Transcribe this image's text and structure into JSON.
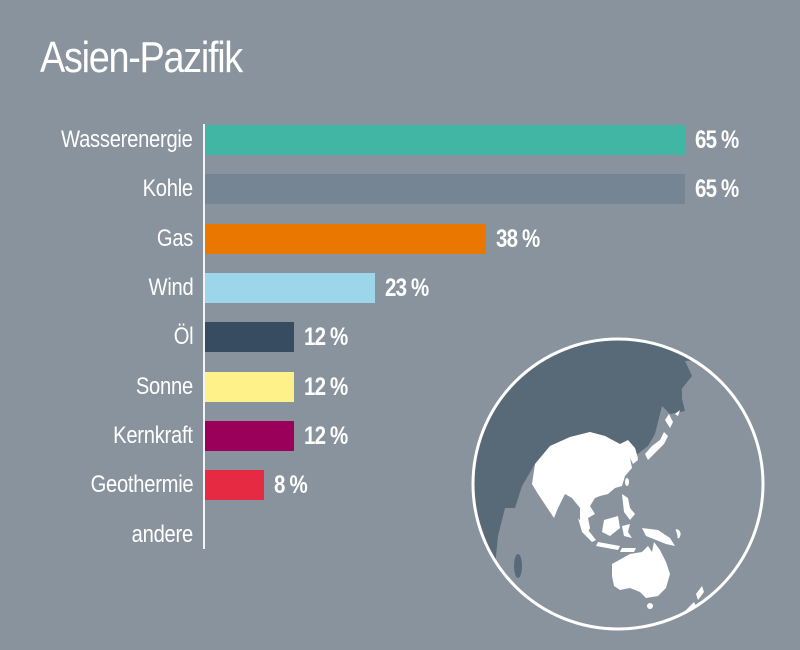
{
  "title": "Asien-Pazifik",
  "rows": [
    {
      "label": "Wasserenergie",
      "value": 65,
      "value_label": "65 %",
      "color": "#42b6a5"
    },
    {
      "label": "Kohle",
      "value": 65,
      "value_label": "65 %",
      "color": "#768594"
    },
    {
      "label": "Gas",
      "value": 38,
      "value_label": "38 %",
      "color": "#ea7700"
    },
    {
      "label": "Wind",
      "value": 23,
      "value_label": "23 %",
      "color": "#9dd5ea"
    },
    {
      "label": "Öl",
      "value": 12,
      "value_label": "12 %",
      "color": "#374c60"
    },
    {
      "label": "Sonne",
      "value": 12,
      "value_label": "12 %",
      "color": "#fff18a"
    },
    {
      "label": "Kernkraft",
      "value": 12,
      "value_label": "12 %",
      "color": "#9a005a"
    },
    {
      "label": "Geothermie",
      "value": 8,
      "value_label": "8 %",
      "color": "#e52a42"
    },
    {
      "label": "andere",
      "value": null,
      "value_label": "",
      "color": null
    }
  ],
  "colors": {
    "background": "#89939e",
    "text": "#ffffff",
    "globe_land_dark": "#586a77",
    "globe_land_highlight": "#ffffff",
    "globe_outline": "#ffffff"
  },
  "globe": {
    "icon": "globe-asia-pacific-icon"
  },
  "chart_data": {
    "type": "bar",
    "orientation": "horizontal",
    "title": "Asien-Pazifik",
    "categories": [
      "Wasserenergie",
      "Kohle",
      "Gas",
      "Wind",
      "Öl",
      "Sonne",
      "Kernkraft",
      "Geothermie",
      "andere"
    ],
    "values": [
      65,
      65,
      38,
      23,
      12,
      12,
      12,
      8,
      null
    ],
    "unit": "%",
    "xlabel": "",
    "ylabel": "",
    "xlim": [
      0,
      65
    ],
    "grid": false,
    "legend": null,
    "data_labels": [
      "65 %",
      "65 %",
      "38 %",
      "23 %",
      "12 %",
      "12 %",
      "12 %",
      "8 %",
      ""
    ]
  }
}
